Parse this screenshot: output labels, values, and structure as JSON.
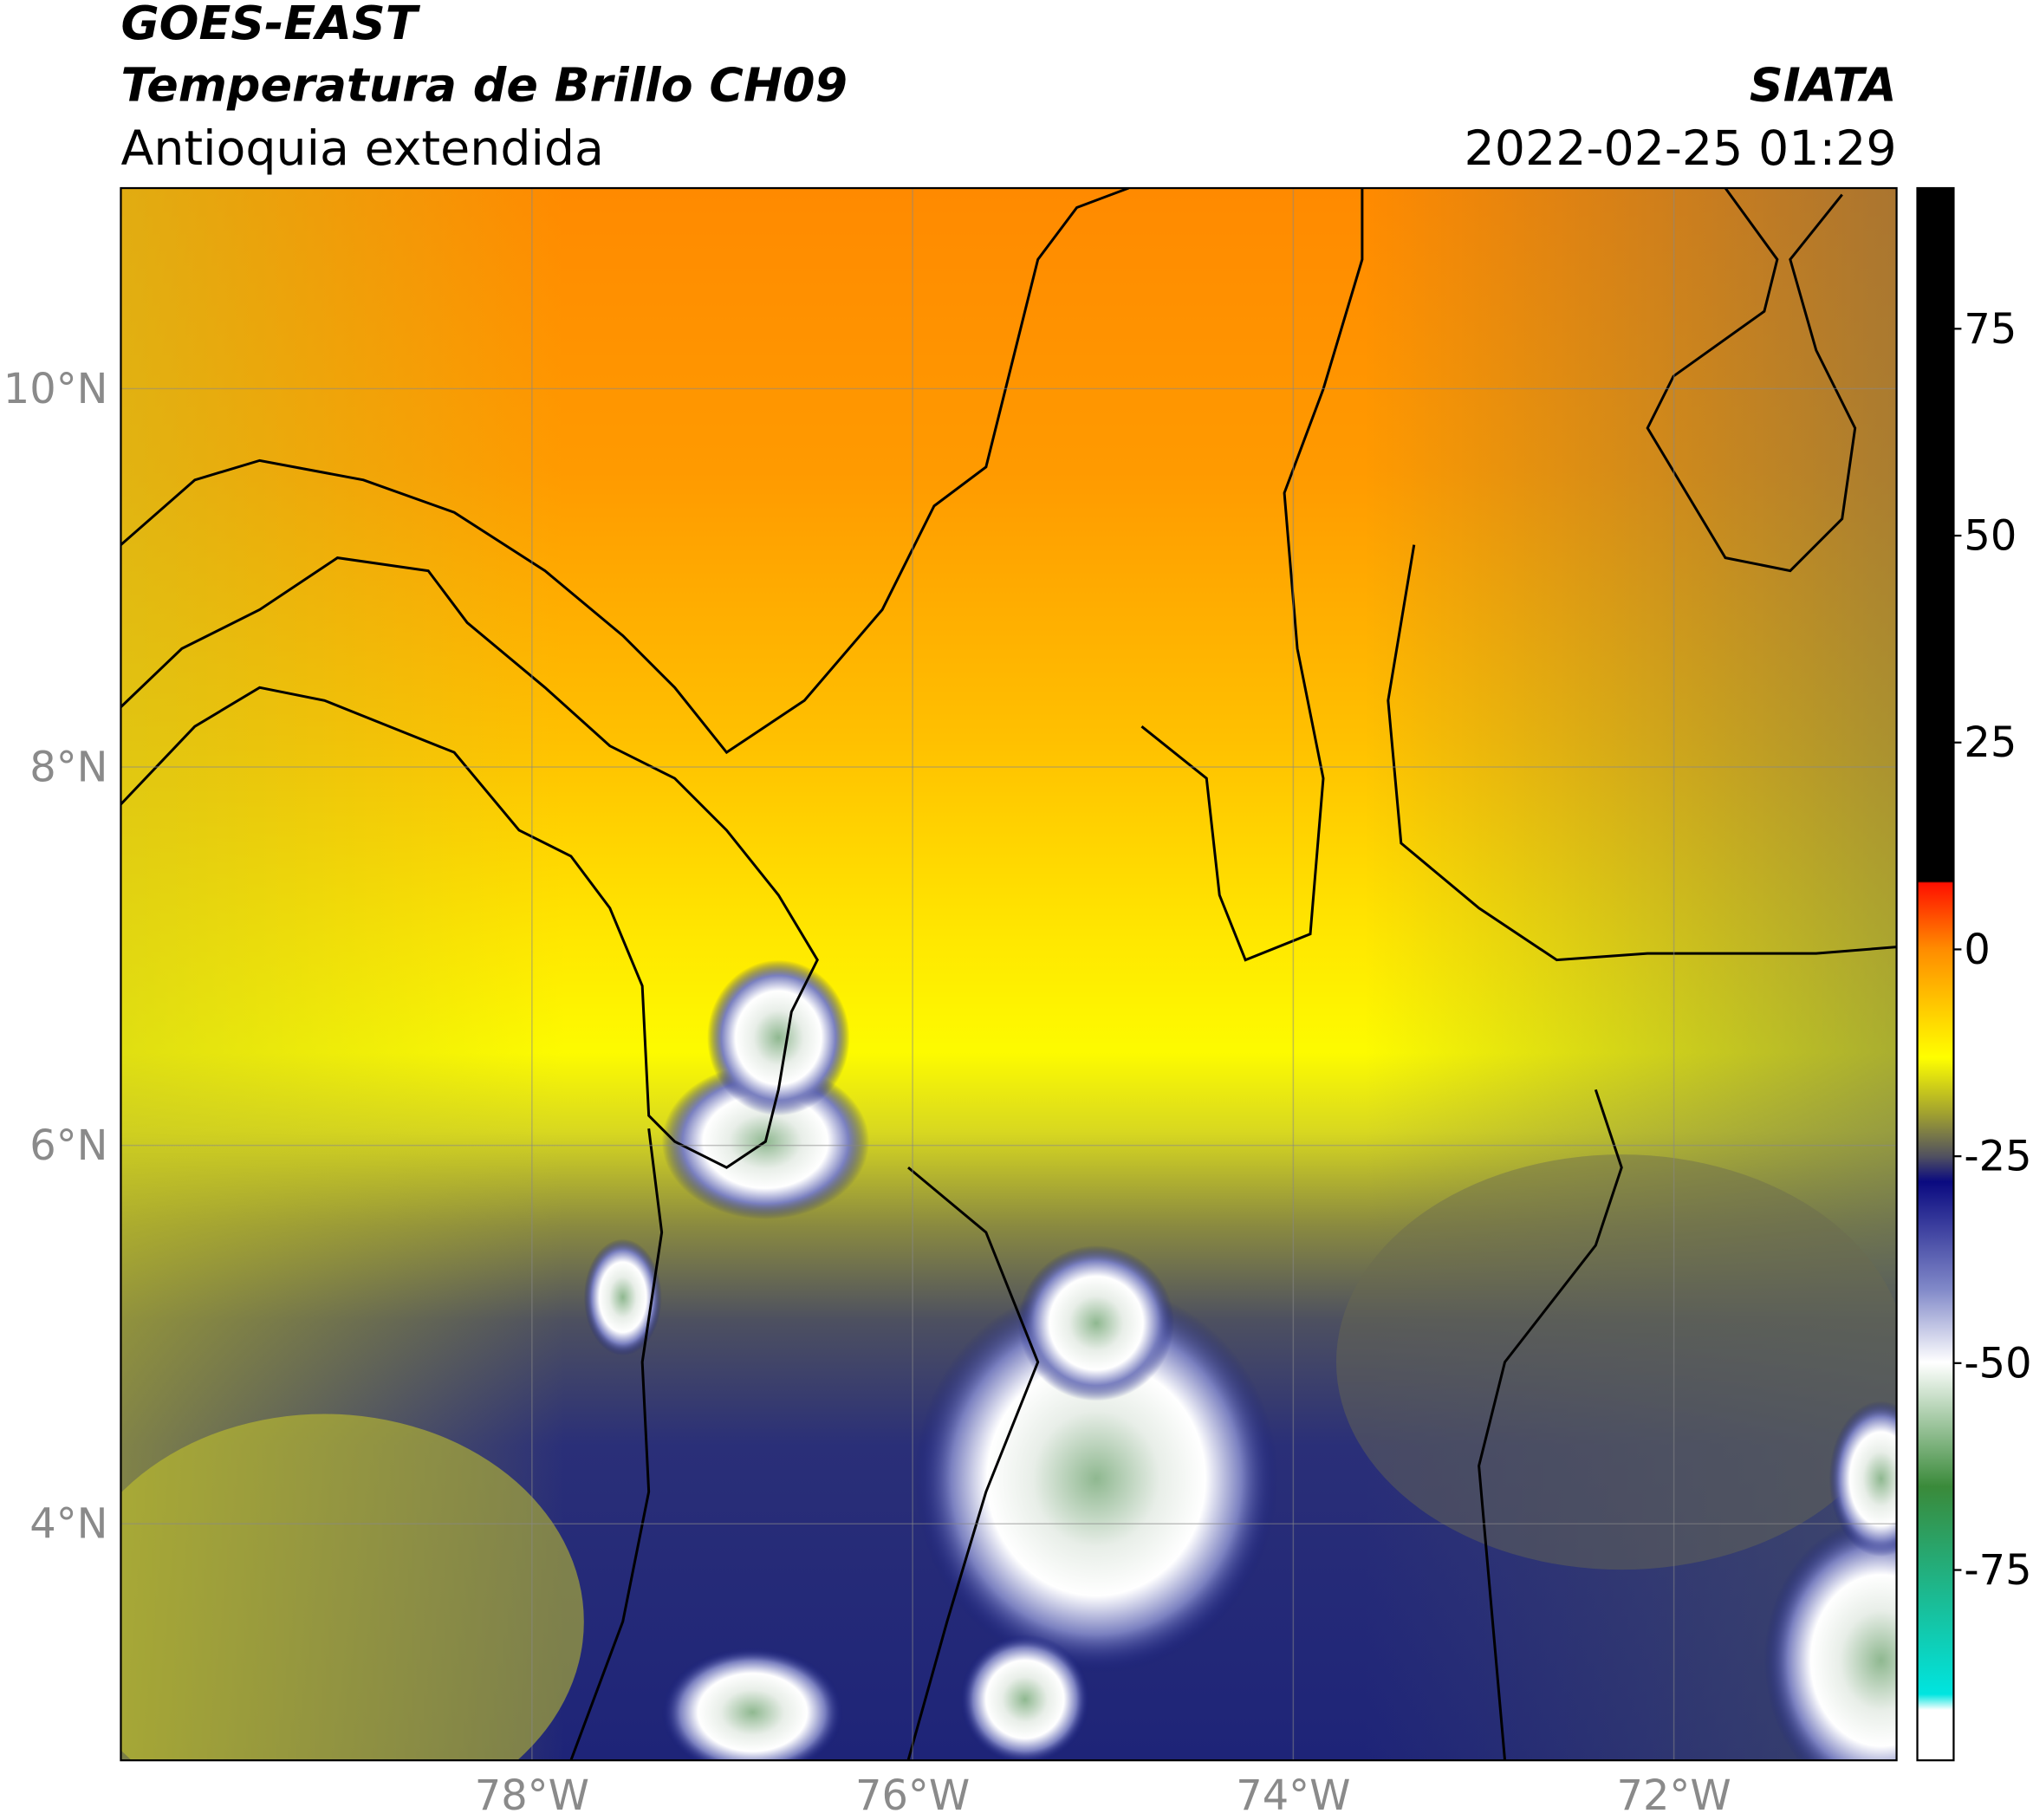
{
  "header": {
    "title": "GOES-EAST",
    "subtitle": "Temperatura de Brillo CH09",
    "region": "Antioquia extendida",
    "source": "SIATA",
    "datetime": "2022-02-25 01:29"
  },
  "map": {
    "xlim": [
      -80.16,
      -70.83
    ],
    "ylim": [
      2.75,
      11.06
    ],
    "xticks": [
      {
        "value": -78,
        "label": "78°W"
      },
      {
        "value": -76,
        "label": "76°W"
      },
      {
        "value": -74,
        "label": "74°W"
      },
      {
        "value": -72,
        "label": "72°W"
      }
    ],
    "yticks": [
      {
        "value": 4,
        "label": "4°N"
      },
      {
        "value": 6,
        "label": "6°N"
      },
      {
        "value": 8,
        "label": "8°N"
      },
      {
        "value": 10,
        "label": "10°N"
      }
    ],
    "grid": true
  },
  "colorbar": {
    "ylim": [
      -98,
      92
    ],
    "yticks": [
      -75,
      -50,
      -25,
      0,
      25,
      50,
      75
    ]
  }
}
